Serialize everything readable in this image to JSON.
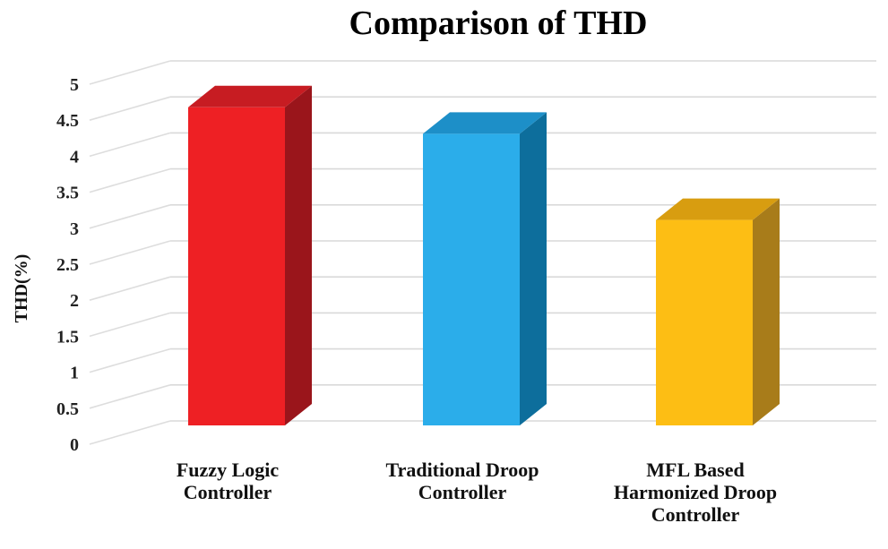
{
  "chart_data": {
    "type": "bar",
    "title": "Comparison of THD",
    "xlabel": "",
    "ylabel": "THD(%)",
    "ylim": [
      0,
      5
    ],
    "ticks": [
      "0",
      "0.5",
      "1",
      "1.5",
      "2",
      "2.5",
      "3",
      "3.5",
      "4",
      "4.5",
      "5"
    ],
    "categories": [
      "Fuzzy Logic Controller",
      "Traditional Droop Controller",
      "MFL Based Harmonized Droop Controller"
    ],
    "category_lines": [
      [
        "Fuzzy Logic",
        "Controller"
      ],
      [
        "Traditional Droop",
        "Controller"
      ],
      [
        "MFL Based",
        "Harmonized Droop",
        "Controller"
      ]
    ],
    "values": [
      4.8,
      4.4,
      3.1
    ],
    "grid": true,
    "legend": "none",
    "style": "3d-column",
    "colors": {
      "bars": [
        {
          "front": "#ee2024",
          "top": "#c71c22",
          "side": "#9a151b"
        },
        {
          "front": "#2badea",
          "top": "#1d8fc8",
          "side": "#0d6e9c"
        },
        {
          "front": "#fdbe14",
          "top": "#d89d10",
          "side": "#a87c1a"
        }
      ],
      "grid": "#d9d9d9",
      "text": "#111111"
    }
  }
}
